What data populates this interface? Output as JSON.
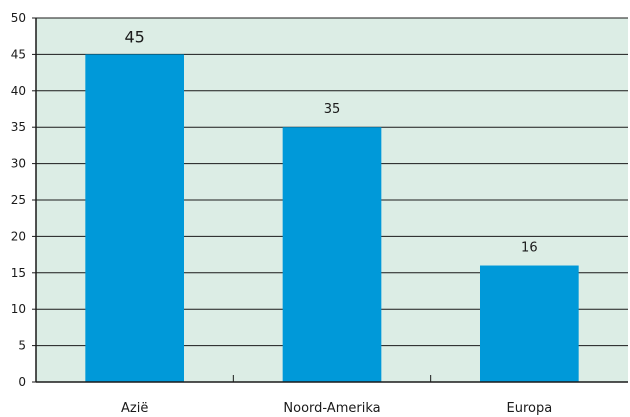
{
  "chart_data": {
    "type": "bar",
    "categories": [
      "Azië",
      "Noord-Amerika",
      "Europa"
    ],
    "values": [
      45,
      35,
      16
    ],
    "data_labels": [
      "45",
      "35",
      "16"
    ],
    "title": "",
    "xlabel": "",
    "ylabel": "",
    "ylim": [
      0,
      50
    ],
    "yticks": [
      0,
      5,
      10,
      15,
      20,
      25,
      30,
      35,
      40,
      45,
      50
    ],
    "ytick_labels": [
      "0",
      "5",
      "10",
      "15",
      "20",
      "25",
      "30",
      "35",
      "40",
      "45",
      "50"
    ],
    "grid": true,
    "legend": "none",
    "colors": {
      "plot_background": "#dcede5",
      "bar": "#0099d9",
      "gridline": "#1a1a1a",
      "axis": "#1a1a1a"
    }
  }
}
